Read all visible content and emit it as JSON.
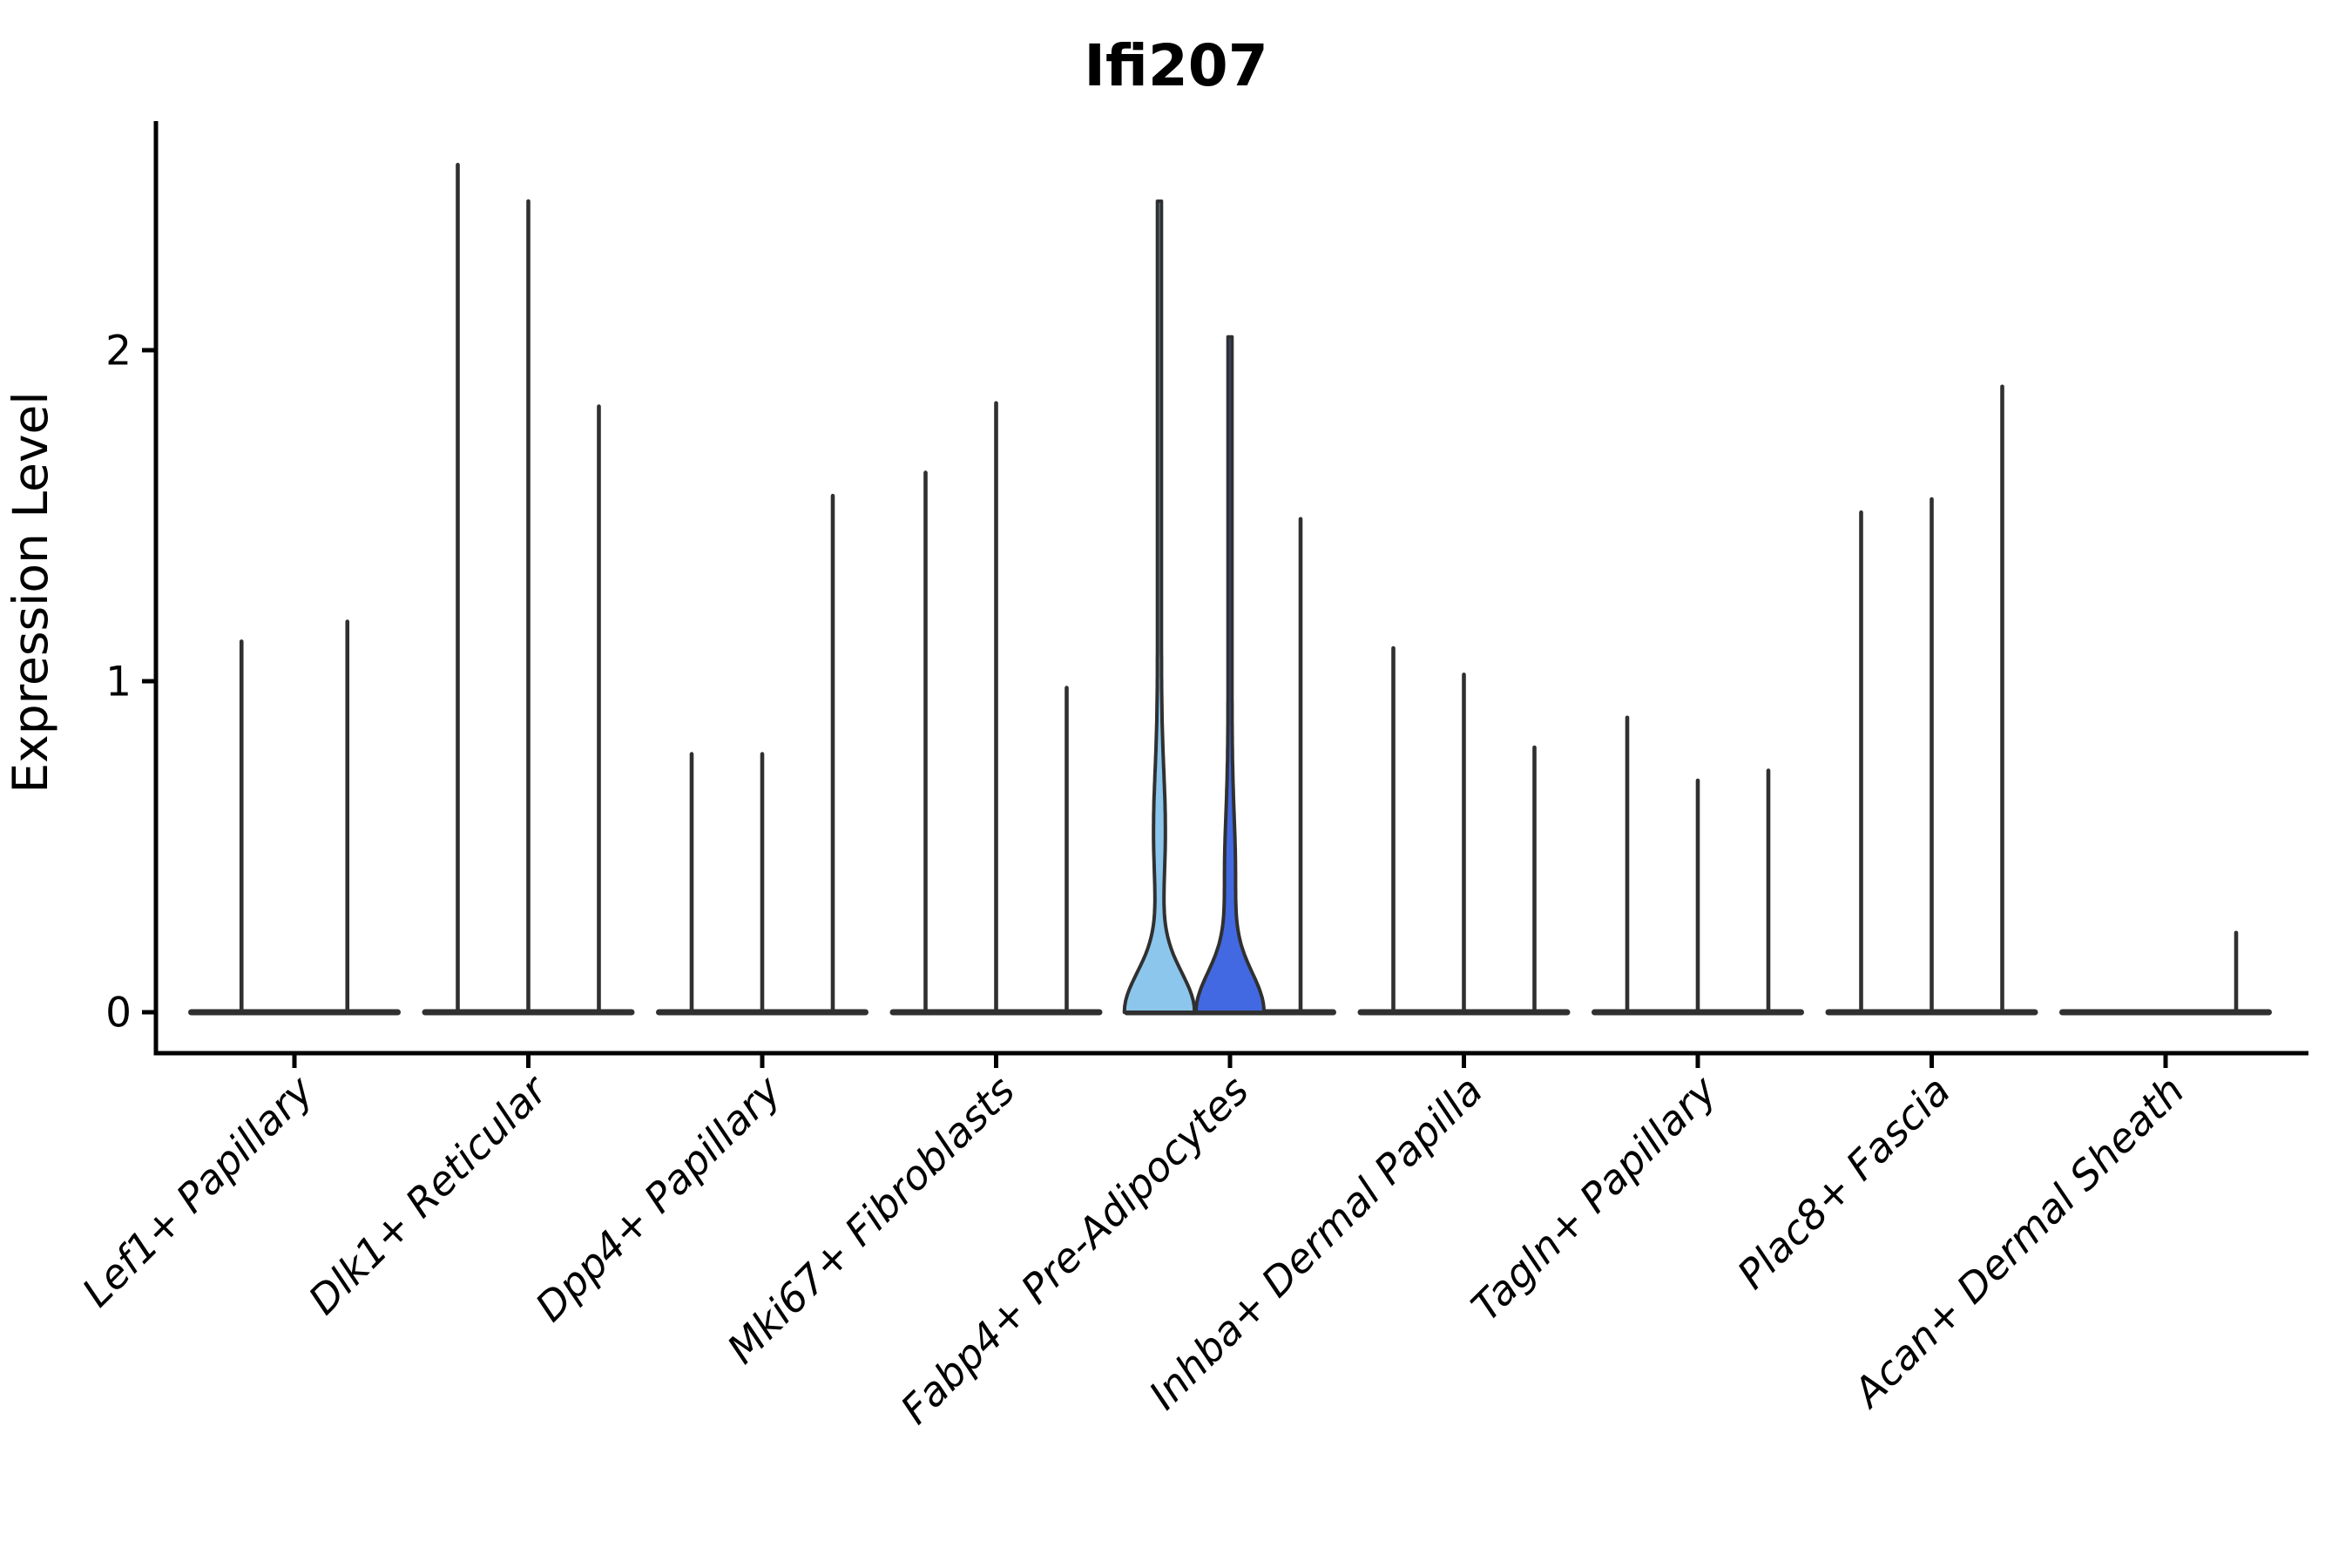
{
  "figure": {
    "title": "Ifi207",
    "ylabel": "Expression Level"
  },
  "colors": {
    "spine": "#000000",
    "violin_outline": "#303030",
    "split_fills": {
      "light_blue": "#8CC6EC",
      "dark_blue": "#4269E1"
    },
    "background": "#ffffff"
  },
  "chart_data": {
    "type": "violin",
    "title": "Ifi207",
    "xlabel": "",
    "ylabel": "Expression Level",
    "yticks": [
      0,
      1,
      2
    ],
    "ylim": [
      0,
      2.7
    ],
    "grid": "off",
    "legend": "none",
    "categories": [
      "Lef1+ Papillary",
      "Dlk1+ Reticular",
      "Dpp4+ Papillary",
      "Mki67+ Fibroblasts",
      "Fabp4+ Pre-Adipocytes",
      "Inhba+ Dermal Papilla",
      "Tagln+ Papillary",
      "Plac8+ Fascia",
      "Acan+ Dermal Sheath"
    ],
    "groups": [
      {
        "category": "Lef1+ Papillary",
        "violins": [
          {
            "max_expression": 1.12
          },
          {
            "max_expression": 1.18
          }
        ]
      },
      {
        "category": "Dlk1+ Reticular",
        "violins": [
          {
            "max_expression": 2.56
          },
          {
            "max_expression": 2.45
          },
          {
            "max_expression": 1.83
          }
        ]
      },
      {
        "category": "Dpp4+ Papillary",
        "violins": [
          {
            "max_expression": 0.78
          },
          {
            "max_expression": 0.78
          },
          {
            "max_expression": 1.56
          }
        ]
      },
      {
        "category": "Mki67+ Fibroblasts",
        "violins": [
          {
            "max_expression": 1.63
          },
          {
            "max_expression": 1.84
          },
          {
            "max_expression": 0.98
          }
        ]
      },
      {
        "category": "Fabp4+ Pre-Adipocytes",
        "violins": [
          {
            "max_expression": 2.45,
            "fill": "light_blue",
            "body": true
          },
          {
            "max_expression": 2.04,
            "fill": "dark_blue",
            "body": true
          },
          {
            "max_expression": 1.49
          }
        ]
      },
      {
        "category": "Inhba+ Dermal Papilla",
        "violins": [
          {
            "max_expression": 1.1
          },
          {
            "max_expression": 1.02
          },
          {
            "max_expression": 0.8
          }
        ]
      },
      {
        "category": "Tagln+ Papillary",
        "violins": [
          {
            "max_expression": 0.89
          },
          {
            "max_expression": 0.7
          },
          {
            "max_expression": 0.73
          }
        ]
      },
      {
        "category": "Plac8+ Fascia",
        "violins": [
          {
            "max_expression": 1.51
          },
          {
            "max_expression": 1.55
          },
          {
            "max_expression": 1.89
          }
        ]
      },
      {
        "category": "Acan+ Dermal Sheath",
        "violins": [
          {
            "max_expression": null
          },
          {
            "max_expression": null
          },
          {
            "max_expression": 0.24
          }
        ]
      }
    ]
  }
}
